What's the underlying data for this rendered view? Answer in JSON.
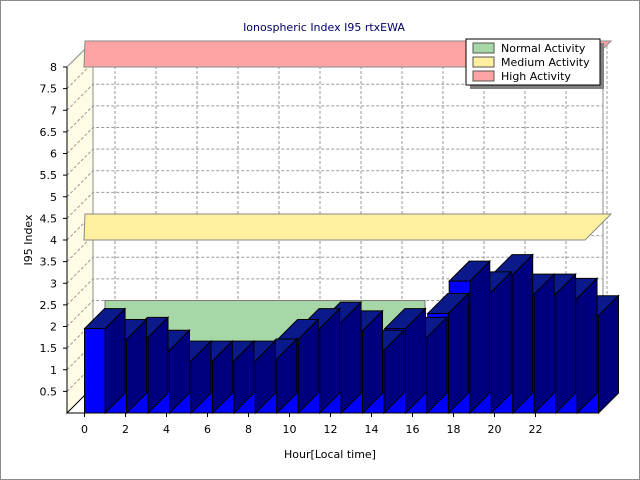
{
  "chart_data": {
    "type": "bar",
    "title": "Ionospheric Index I95 rtxEWA",
    "xlabel": "Hour[Local time]",
    "ylabel": "I95 Index",
    "x_ticks": [
      "0",
      "2",
      "4",
      "6",
      "8",
      "10",
      "12",
      "14",
      "16",
      "18",
      "20",
      "22"
    ],
    "y_ticks": [
      "0.5",
      "1",
      "1.5",
      "2",
      "2.5",
      "3",
      "3.5",
      "4",
      "4.5",
      "5",
      "5.5",
      "6",
      "6.5",
      "7",
      "7.5",
      "8"
    ],
    "ylim": [
      0,
      8
    ],
    "grid": true,
    "legend_position": "top-right",
    "categories": [
      0,
      1,
      2,
      3,
      4,
      5,
      6,
      7,
      8,
      9,
      10,
      11,
      12,
      13,
      14,
      15,
      16,
      17,
      18,
      19,
      20,
      21,
      22,
      23
    ],
    "series": [
      {
        "color": "#0000ff",
        "values": [
          1.95,
          1.7,
          1.75,
          1.45,
          1.2,
          1.2,
          1.2,
          1.2,
          1.25,
          1.7,
          1.95,
          2.1,
          1.9,
          1.45,
          1.95,
          1.75,
          2.3,
          3.05,
          2.8,
          3.2,
          2.75,
          2.75,
          2.65,
          2.25
        ]
      }
    ],
    "bands": [
      {
        "name": "Normal Activity",
        "from": 0,
        "to": 2,
        "color": "#a7d7a7"
      },
      {
        "name": "Medium Activity",
        "from": 4,
        "to": 4,
        "color": "#fff0a0"
      },
      {
        "name": "High Activity",
        "from": 8,
        "to": 8,
        "color": "#ffa4a4"
      }
    ]
  }
}
